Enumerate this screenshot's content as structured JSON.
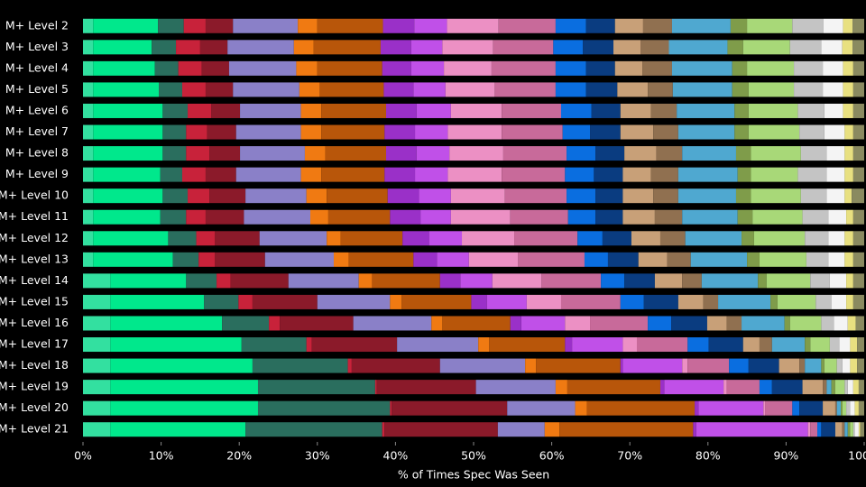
{
  "chart_data": {
    "type": "bar",
    "orientation": "horizontal",
    "stacked": true,
    "xlabel": "% of Times Spec Was Seen",
    "categories": [
      "M+ Level 2",
      "M+ Level 3",
      "M+ Level 4",
      "M+ Level 5",
      "M+ Level 6",
      "M+ Level 7",
      "M+ Level 8",
      "M+ Level 9",
      "M+ Level 10",
      "M+ Level 11",
      "M+ Level 12",
      "M+ Level 13",
      "M+ Level 14",
      "M+ Level 15",
      "M+ Level 16",
      "M+ Level 17",
      "M+ Level 18",
      "M+ Level 19",
      "M+ Level 20",
      "M+ Level 21"
    ],
    "xlim": [
      0,
      100
    ],
    "xticks": [
      {
        "value": 0,
        "label": "0%"
      },
      {
        "value": 10,
        "label": "10%"
      },
      {
        "value": 20,
        "label": "20%"
      },
      {
        "value": 30,
        "label": "30%"
      },
      {
        "value": 40,
        "label": "40%"
      },
      {
        "value": 50,
        "label": "50%"
      },
      {
        "value": 60,
        "label": "60%"
      },
      {
        "value": 70,
        "label": "70%"
      },
      {
        "value": 80,
        "label": "80%"
      },
      {
        "value": 90,
        "label": "90%"
      },
      {
        "value": 100,
        "label": "100%"
      }
    ],
    "series": [
      {
        "color": "#33e0a0",
        "values": [
          1.3,
          1.3,
          1.3,
          1.3,
          1.3,
          1.3,
          1.3,
          1.3,
          1.3,
          1.3,
          1.3,
          1.3,
          3.5,
          3.5,
          3.5,
          3.5,
          3.5,
          3.5,
          3.5,
          3.5
        ]
      },
      {
        "color": "#00e88c",
        "values": [
          8.3,
          7.5,
          7.9,
          8.4,
          8.9,
          8.9,
          8.9,
          8.6,
          8.9,
          8.6,
          9.6,
          10.2,
          9.7,
          12.0,
          14.3,
          16.8,
          18.2,
          18.9,
          18.9,
          17.3
        ]
      },
      {
        "color": "#2a6e5e",
        "values": [
          3.3,
          3.1,
          3.0,
          3.0,
          3.2,
          3.0,
          3.0,
          2.8,
          3.2,
          3.3,
          3.6,
          3.3,
          3.9,
          4.4,
          6.0,
          8.3,
          12.2,
          15.0,
          16.9,
          17.5
        ]
      },
      {
        "color": "#c8223a",
        "values": [
          2.8,
          3.1,
          3.0,
          3.0,
          3.0,
          2.7,
          3.0,
          3.0,
          2.8,
          2.5,
          2.4,
          2.1,
          1.8,
          1.8,
          1.4,
          0.7,
          0.5,
          0.2,
          0.2,
          0.3
        ]
      },
      {
        "color": "#8b1a2a",
        "values": [
          3.5,
          3.5,
          3.5,
          3.5,
          3.7,
          3.7,
          3.9,
          3.9,
          4.6,
          4.9,
          5.7,
          6.4,
          7.4,
          8.3,
          9.4,
          10.9,
          11.3,
          12.7,
          14.8,
          14.5
        ]
      },
      {
        "color": "#8a80c8",
        "values": [
          8.3,
          8.5,
          8.6,
          8.5,
          7.8,
          8.3,
          8.3,
          8.3,
          7.8,
          8.5,
          8.6,
          8.8,
          9.0,
          9.3,
          10.0,
          10.4,
          10.9,
          10.2,
          8.7,
          6.0
        ]
      },
      {
        "color": "#f07a12",
        "values": [
          2.5,
          2.5,
          2.7,
          2.6,
          2.6,
          2.6,
          2.6,
          2.6,
          2.6,
          2.3,
          1.8,
          1.9,
          1.7,
          1.5,
          1.4,
          1.4,
          1.4,
          1.5,
          1.5,
          1.9
        ]
      },
      {
        "color": "#b8560a",
        "values": [
          8.4,
          8.6,
          8.3,
          8.2,
          8.3,
          8.1,
          7.8,
          8.1,
          7.8,
          7.9,
          7.9,
          8.3,
          8.7,
          8.9,
          8.7,
          9.7,
          10.8,
          11.9,
          13.8,
          17.1
        ]
      },
      {
        "color": "#9a30c8",
        "values": [
          4.0,
          3.9,
          3.7,
          3.8,
          3.9,
          3.9,
          3.9,
          3.9,
          4.0,
          3.9,
          3.4,
          3.0,
          2.6,
          2.0,
          1.4,
          0.9,
          0.3,
          0.5,
          0.5,
          0.4
        ]
      },
      {
        "color": "#c050e8",
        "values": [
          4.2,
          4.0,
          4.2,
          4.1,
          4.4,
          4.2,
          4.2,
          4.2,
          4.1,
          3.9,
          4.2,
          4.1,
          4.1,
          5.1,
          5.6,
          6.5,
          7.6,
          7.6,
          8.3,
          14.3
        ]
      },
      {
        "color": "#ec90c4",
        "values": [
          6.6,
          6.5,
          6.1,
          6.3,
          6.5,
          6.9,
          6.9,
          6.9,
          6.9,
          7.6,
          6.7,
          6.3,
          6.3,
          4.4,
          3.2,
          1.8,
          0.7,
          0.4,
          0.2,
          0.3
        ]
      },
      {
        "color": "#c86a9a",
        "values": [
          7.3,
          7.7,
          8.2,
          7.8,
          7.6,
          7.8,
          8.1,
          8.1,
          7.9,
          7.4,
          8.1,
          8.5,
          7.6,
          7.6,
          7.4,
          6.5,
          5.3,
          4.2,
          3.5,
          0.9
        ]
      },
      {
        "color": "#0a6ee0",
        "values": [
          3.9,
          3.8,
          3.9,
          3.9,
          3.9,
          3.5,
          3.7,
          3.7,
          3.7,
          3.5,
          3.2,
          3.0,
          3.0,
          3.0,
          3.0,
          2.7,
          2.5,
          1.6,
          0.9,
          0.5
        ]
      },
      {
        "color": "#0a3c80",
        "values": [
          3.7,
          3.9,
          3.7,
          4.0,
          3.7,
          3.9,
          3.7,
          3.7,
          3.5,
          3.5,
          3.7,
          3.9,
          3.9,
          4.4,
          4.6,
          4.4,
          3.9,
          3.9,
          3.0,
          1.8
        ]
      },
      {
        "color": "#c8a078",
        "values": [
          3.6,
          3.5,
          3.5,
          3.9,
          3.9,
          4.2,
          4.1,
          3.6,
          3.9,
          4.1,
          3.7,
          3.7,
          3.5,
          3.2,
          2.5,
          2.1,
          2.6,
          2.6,
          1.6,
          0.9
        ]
      },
      {
        "color": "#907050",
        "values": [
          3.7,
          3.6,
          3.8,
          3.2,
          3.3,
          3.2,
          3.3,
          3.5,
          3.2,
          3.5,
          3.2,
          3.0,
          2.5,
          1.9,
          1.9,
          1.6,
          0.7,
          0.5,
          0.2,
          0.3
        ]
      },
      {
        "color": "#4fa8d0",
        "values": [
          7.5,
          7.5,
          7.7,
          7.6,
          7.4,
          7.2,
          6.9,
          7.6,
          7.4,
          7.1,
          7.2,
          7.2,
          7.2,
          6.7,
          5.5,
          4.2,
          2.1,
          0.6,
          0.5,
          0.4
        ]
      },
      {
        "color": "#7f9c4a",
        "values": [
          2.1,
          2.0,
          1.9,
          2.1,
          1.8,
          1.8,
          1.9,
          1.7,
          1.9,
          1.9,
          1.6,
          1.6,
          1.1,
          0.9,
          0.7,
          0.7,
          0.4,
          0.5,
          0.2,
          0.3
        ]
      },
      {
        "color": "#a8d878",
        "values": [
          5.8,
          6.0,
          6.0,
          5.8,
          6.3,
          6.5,
          6.4,
          6.0,
          6.4,
          6.4,
          6.5,
          6.0,
          5.6,
          4.9,
          4.0,
          2.5,
          1.6,
          1.2,
          0.5,
          0.4
        ]
      },
      {
        "color": "#c4c4c4",
        "values": [
          4.0,
          4.0,
          3.7,
          3.7,
          3.4,
          3.2,
          3.3,
          3.7,
          3.3,
          3.3,
          3.0,
          2.8,
          2.5,
          2.0,
          1.6,
          1.2,
          0.7,
          0.4,
          0.5,
          0.2
        ]
      },
      {
        "color": "#f4f4f4",
        "values": [
          2.5,
          2.7,
          2.6,
          2.6,
          2.4,
          2.6,
          2.3,
          2.3,
          2.3,
          2.3,
          2.1,
          2.1,
          2.1,
          1.9,
          1.8,
          1.4,
          1.0,
          0.7,
          0.6,
          0.5
        ]
      },
      {
        "color": "#e8e080",
        "values": [
          1.2,
          1.3,
          1.3,
          1.3,
          1.3,
          1.1,
          1.1,
          1.1,
          0.9,
          0.9,
          1.1,
          1.1,
          0.9,
          0.9,
          1.0,
          0.9,
          0.9,
          0.7,
          0.5,
          0.2
        ]
      },
      {
        "color": "#8a8a60",
        "values": [
          1.5,
          1.5,
          1.4,
          1.4,
          1.4,
          1.4,
          1.4,
          1.4,
          1.6,
          1.4,
          1.4,
          1.4,
          1.4,
          1.4,
          1.1,
          0.9,
          0.9,
          0.7,
          0.7,
          0.5
        ]
      }
    ]
  }
}
